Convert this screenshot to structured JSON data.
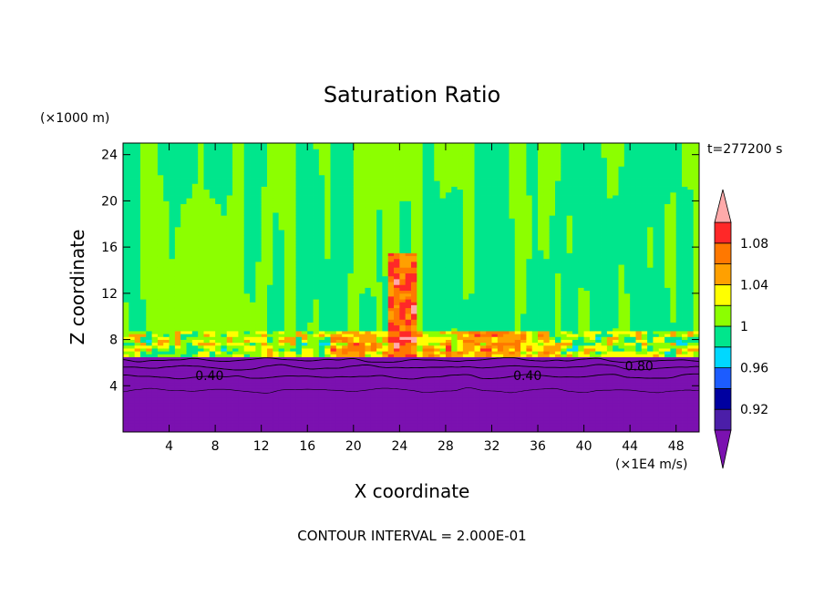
{
  "chart_data": {
    "type": "heatmap",
    "title": "Saturation Ratio",
    "xlabel": "X coordinate",
    "ylabel": "Z coordinate",
    "x_unit": "(×1E4 m/s)",
    "y_unit": "(×1000 m)",
    "time_label": "t=277200 s",
    "footer": "CONTOUR INTERVAL = 2.000E-01",
    "xlim": [
      0,
      50
    ],
    "ylim": [
      0,
      25
    ],
    "x_ticks": [
      "4",
      "8",
      "12",
      "16",
      "20",
      "24",
      "28",
      "32",
      "36",
      "40",
      "44",
      "48"
    ],
    "y_ticks": [
      "4",
      "8",
      "12",
      "16",
      "20",
      "24"
    ],
    "colorbar": {
      "levels": [
        0.9,
        0.92,
        0.94,
        0.96,
        0.98,
        1.0,
        1.02,
        1.04,
        1.06,
        1.08,
        1.1
      ],
      "tick_labels": [
        "0.92",
        "0.96",
        "1",
        "1.04",
        "1.08"
      ],
      "band_colors": [
        "#4b1ea8",
        "#0000a0",
        "#1c5cff",
        "#00d8ff",
        "#00e68c",
        "#8cff00",
        "#ffff00",
        "#ffa000",
        "#ff7800",
        "#ff2828"
      ],
      "under_color": "#7b11b0",
      "over_color": "#ffaaaa"
    },
    "contour_labels": [
      {
        "text": "0.40",
        "x": 7.5,
        "z": 4.9
      },
      {
        "text": "0.40",
        "x": 35.1,
        "z": 4.9
      },
      {
        "text": "0.80",
        "x": 44.8,
        "z": 5.7
      }
    ],
    "regions": {
      "subsaturated_below_km": 6.5,
      "cloud_layer_km": [
        6.5,
        8.8
      ],
      "convective_core": {
        "x_range": [
          22.8,
          25.5
        ],
        "z_top": 15.5
      }
    }
  }
}
